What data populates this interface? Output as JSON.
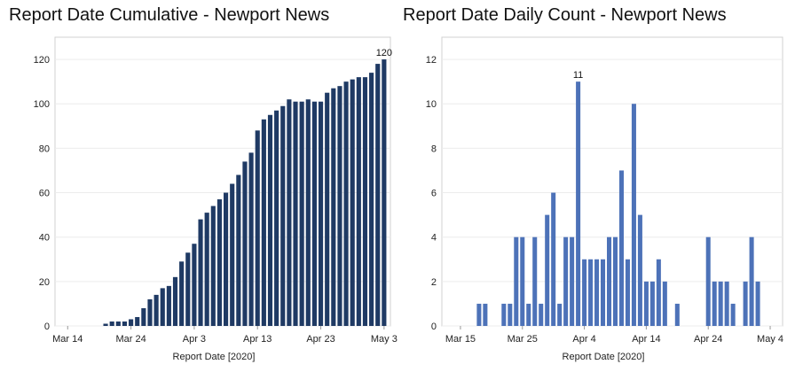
{
  "chart_data": [
    {
      "type": "bar",
      "title": "Report Date Cumulative - Newport News",
      "xlabel": "Report Date [2020]",
      "ylabel": "",
      "ylim": [
        0,
        130
      ],
      "yticks": [
        0,
        20,
        40,
        60,
        80,
        100,
        120
      ],
      "xticks": [
        {
          "label": "Mar 14",
          "day": 0
        },
        {
          "label": "Mar 24",
          "day": 10
        },
        {
          "label": "Apr 3",
          "day": 20
        },
        {
          "label": "Apr 13",
          "day": 30
        },
        {
          "label": "Apr 23",
          "day": 40
        },
        {
          "label": "May 3",
          "day": 50
        }
      ],
      "x_domain": [
        -2,
        51
      ],
      "bar_color": "#1f3a64",
      "start_day": 6,
      "values": [
        1,
        2,
        2,
        2,
        3,
        4,
        8,
        12,
        14,
        17,
        18,
        22,
        29,
        33,
        37,
        48,
        51,
        54,
        57,
        60,
        64,
        68,
        74,
        78,
        88,
        93,
        95,
        97,
        99,
        102,
        101,
        101,
        102,
        101,
        101,
        105,
        107,
        108,
        110,
        111,
        112,
        112,
        114,
        118,
        120
      ],
      "annotations": [
        {
          "day": 50,
          "text": "120"
        }
      ]
    },
    {
      "type": "bar",
      "title": "Report Date Daily Count - Newport News",
      "xlabel": "Report Date [2020]",
      "ylabel": "",
      "ylim": [
        0,
        13
      ],
      "yticks": [
        0,
        2,
        4,
        6,
        8,
        10,
        12
      ],
      "xticks": [
        {
          "label": "Mar 15",
          "day": 1
        },
        {
          "label": "Mar 25",
          "day": 11
        },
        {
          "label": "Apr 4",
          "day": 21
        },
        {
          "label": "Apr 14",
          "day": 31
        },
        {
          "label": "Apr 24",
          "day": 41
        },
        {
          "label": "May 4",
          "day": 51
        }
      ],
      "x_domain": [
        -2,
        53
      ],
      "bar_color": "#4d72b8",
      "start_day": 4,
      "values": [
        1,
        1,
        0,
        0,
        1,
        1,
        4,
        4,
        1,
        4,
        1,
        5,
        6,
        1,
        4,
        4,
        11,
        3,
        3,
        3,
        3,
        4,
        4,
        7,
        3,
        10,
        5,
        2,
        2,
        3,
        2,
        0,
        1,
        0,
        0,
        0,
        0,
        4,
        2,
        2,
        2,
        1,
        0,
        2,
        4,
        2
      ],
      "annotations": [
        {
          "day": 20,
          "text": "11"
        }
      ]
    }
  ]
}
